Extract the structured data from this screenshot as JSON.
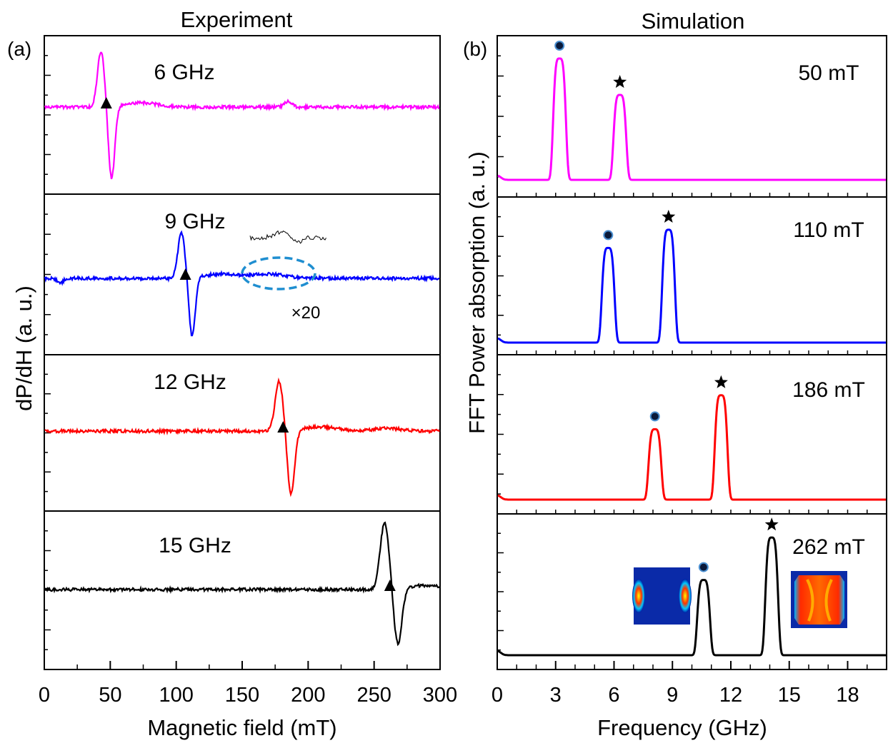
{
  "figure": {
    "left_title": "Experiment",
    "right_title": "Simulation",
    "left_panel_tag": "(a)",
    "right_panel_tag": "(b)"
  },
  "chart_data": [
    {
      "type": "line",
      "panel": "(a)",
      "title": "Experiment",
      "xlabel": "Magnetic field (mT)",
      "ylabel": "dP/dH (a. u.)",
      "xlim": [
        0,
        300
      ],
      "xticks": [
        "0",
        "50",
        "100",
        "150",
        "200",
        "250",
        "300"
      ],
      "grid": false,
      "series": [
        {
          "name": "6 GHz",
          "color": "#ff00ff",
          "resonance_mT": 47.5,
          "peak_mT": 43,
          "dip_mT": 51,
          "amplitude": 1.0,
          "marker_mT": 47,
          "tail_bump_mT": 185
        },
        {
          "name": "9 GHz",
          "color": "#0000ff",
          "resonance_mT": 108,
          "peak_mT": 104,
          "dip_mT": 112,
          "amplitude": 1.0,
          "marker_mT": 107,
          "small_dip_mT": 12,
          "weak_mode_mT": 170
        },
        {
          "name": "12 GHz",
          "color": "#ff0000",
          "resonance_mT": 182,
          "peak_mT": 178,
          "dip_mT": 187,
          "amplitude": 1.0,
          "marker_mT": 181,
          "small_bump_mT": 260
        },
        {
          "name": "15 GHz",
          "color": "#000000",
          "resonance_mT": 263,
          "peak_mT": 258,
          "dip_mT": 268,
          "amplitude": 0.95,
          "marker_mT": 262
        }
      ],
      "annotations": {
        "inset_zoom_label": "×20",
        "marker": "triangle"
      }
    },
    {
      "type": "line",
      "panel": "(b)",
      "title": "Simulation",
      "xlabel": "Frequency (GHz)",
      "ylabel": "FFT Power absorption (a. u.)",
      "xlim": [
        0,
        20
      ],
      "xticks": [
        "0",
        "3",
        "6",
        "9",
        "12",
        "15",
        "18"
      ],
      "grid": false,
      "series": [
        {
          "name": "50 mT",
          "color": "#ff00ff",
          "peaks": [
            {
              "x": 3.2,
              "y": 1.0,
              "marker": "circle"
            },
            {
              "x": 6.3,
              "y": 0.7,
              "marker": "star"
            }
          ]
        },
        {
          "name": "110 mT",
          "color": "#0000ff",
          "peaks": [
            {
              "x": 5.7,
              "y": 0.78,
              "marker": "circle"
            },
            {
              "x": 8.8,
              "y": 0.93,
              "marker": "star"
            }
          ]
        },
        {
          "name": "186 mT",
          "color": "#ff0000",
          "peaks": [
            {
              "x": 8.1,
              "y": 0.58,
              "marker": "circle"
            },
            {
              "x": 11.5,
              "y": 0.86,
              "marker": "star"
            }
          ]
        },
        {
          "name": "262 mT",
          "color": "#000000",
          "peaks": [
            {
              "x": 10.6,
              "y": 0.62,
              "marker": "circle"
            },
            {
              "x": 14.1,
              "y": 0.97,
              "marker": "star"
            }
          ]
        }
      ],
      "annotations": {
        "mode_profile_insets": 2
      }
    }
  ]
}
